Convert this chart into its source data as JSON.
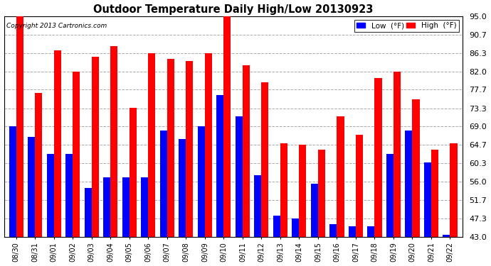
{
  "title": "Outdoor Temperature Daily High/Low 20130923",
  "copyright_text": "Copyright 2013 Cartronics.com",
  "categories": [
    "08/30",
    "08/31",
    "09/01",
    "09/02",
    "09/03",
    "09/04",
    "09/05",
    "09/06",
    "09/07",
    "09/08",
    "09/09",
    "09/10",
    "09/11",
    "09/12",
    "09/13",
    "09/14",
    "09/15",
    "09/16",
    "09/17",
    "09/18",
    "09/19",
    "09/20",
    "09/21",
    "09/22"
  ],
  "high_values": [
    95.0,
    77.0,
    87.0,
    82.0,
    85.5,
    88.0,
    73.5,
    86.3,
    85.0,
    84.5,
    86.3,
    95.5,
    83.5,
    79.5,
    65.0,
    64.7,
    63.5,
    71.5,
    67.0,
    80.5,
    82.0,
    75.5,
    63.5,
    65.0
  ],
  "low_values": [
    69.0,
    66.5,
    62.5,
    62.5,
    54.5,
    57.0,
    57.0,
    57.0,
    68.0,
    66.0,
    69.0,
    76.5,
    71.5,
    57.5,
    48.0,
    47.3,
    55.5,
    46.0,
    45.5,
    45.5,
    62.5,
    68.0,
    60.5,
    43.5
  ],
  "high_color": "#ff0000",
  "low_color": "#0000ff",
  "bg_color": "#ffffff",
  "grid_color": "#aaaaaa",
  "yticks": [
    43.0,
    47.3,
    51.7,
    56.0,
    60.3,
    64.7,
    69.0,
    73.3,
    77.7,
    82.0,
    86.3,
    90.7,
    95.0
  ],
  "ymin": 43.0,
  "ymax": 95.0,
  "legend_low_label": "Low  (°F)",
  "legend_high_label": "High  (°F)",
  "bar_bottom": 43.0
}
